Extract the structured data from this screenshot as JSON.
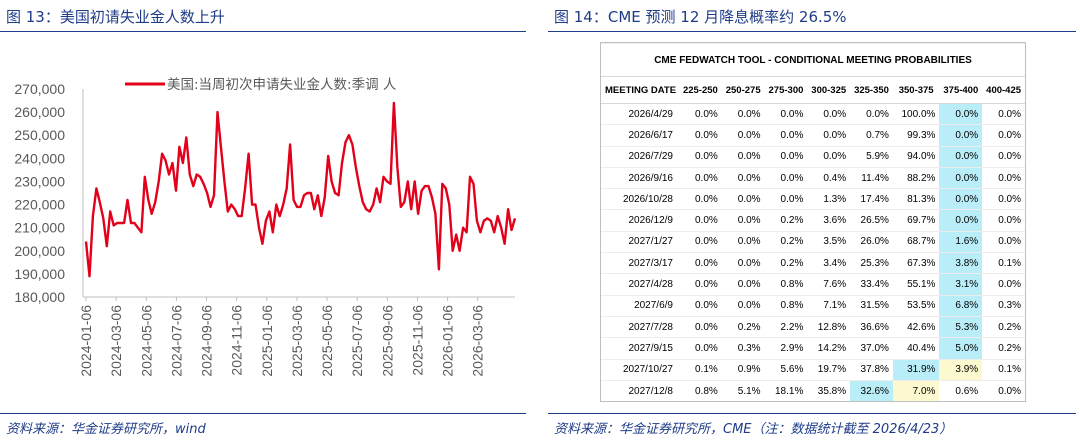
{
  "left": {
    "figure_title": "图 13：美国初请失业金人数上升",
    "source": "资料来源：华金证券研究所，wind"
  },
  "right": {
    "figure_title": "图 14：CME 预测 12 月降息概率约 26.5%",
    "source": "资料来源：华金证券研究所，CME（注：数据统计截至 2026/4/23）"
  },
  "colors": {
    "accent": "#1f3c88",
    "line": "#e2001a",
    "highlight_blue": "#b9eef8",
    "highlight_yellow": "#fcf8cf"
  },
  "chart_data": {
    "type": "line",
    "title": "",
    "legend_label": "美国:当周初次申请失业金人数:季调 人",
    "legend_position": "top",
    "ylim": [
      180000,
      270000
    ],
    "yticks": [
      "270,000",
      "260,000",
      "250,000",
      "240,000",
      "230,000",
      "220,000",
      "210,000",
      "200,000",
      "190,000",
      "180,000"
    ],
    "ytick_values": [
      270000,
      260000,
      250000,
      240000,
      230000,
      220000,
      210000,
      200000,
      190000,
      180000
    ],
    "xticks": [
      "2024-01-06",
      "2024-03-06",
      "2024-05-06",
      "2024-07-06",
      "2024-09-06",
      "2024-11-06",
      "2025-01-06",
      "2025-03-06",
      "2025-05-06",
      "2025-07-06",
      "2025-09-06",
      "2025-11-06",
      "2026-01-06",
      "2026-03-06"
    ],
    "series": [
      {
        "name": "美国:当周初次申请失业金人数:季调 人",
        "x_start": "2024-01-06",
        "interval": "weekly",
        "values": [
          204000,
          189000,
          215000,
          227000,
          221000,
          214000,
          202000,
          217000,
          211000,
          212000,
          212000,
          212000,
          222000,
          212000,
          212000,
          210000,
          208000,
          232000,
          222000,
          216000,
          221000,
          230000,
          242000,
          239000,
          233000,
          238000,
          226000,
          245000,
          238000,
          249000,
          233000,
          228000,
          233000,
          232000,
          229000,
          225000,
          219000,
          224000,
          260000,
          245000,
          230000,
          217000,
          220000,
          218000,
          215000,
          215000,
          227000,
          242000,
          220000,
          220000,
          210000,
          203000,
          213000,
          217000,
          208000,
          220000,
          215000,
          220000,
          227000,
          246000,
          222000,
          219000,
          219000,
          224000,
          225000,
          225000,
          218000,
          224000,
          215000,
          223000,
          241000,
          230000,
          225000,
          224000,
          238000,
          247000,
          250000,
          246000,
          236000,
          228000,
          221000,
          218000,
          217000,
          220000,
          227000,
          221000,
          232000,
          230000,
          229000,
          264000,
          236000,
          219000,
          221000,
          230000,
          218000,
          230000,
          216000,
          226000,
          228000,
          228000,
          223000,
          216000,
          192000,
          229000,
          227000,
          220000,
          200000,
          207000,
          200000,
          210000,
          208000,
          232000,
          229000,
          213000,
          208000,
          213000,
          214000,
          213000,
          208000,
          215000,
          210000,
          203000,
          218000,
          209000,
          214000
        ]
      }
    ]
  },
  "table": {
    "tool_title": "CME FEDWATCH TOOL - CONDITIONAL MEETING PROBABILITIES",
    "headers": [
      "MEETING DATE",
      "225-250",
      "250-275",
      "275-300",
      "300-325",
      "325-350",
      "350-375",
      "375-400",
      "400-425"
    ],
    "rows": [
      [
        "2026/4/29",
        "0.0%",
        "0.0%",
        "0.0%",
        "0.0%",
        "0.0%",
        "100.0%",
        "0.0%",
        "0.0%"
      ],
      [
        "2026/6/17",
        "0.0%",
        "0.0%",
        "0.0%",
        "0.0%",
        "0.7%",
        "99.3%",
        "0.0%",
        "0.0%"
      ],
      [
        "2026/7/29",
        "0.0%",
        "0.0%",
        "0.0%",
        "0.0%",
        "5.9%",
        "94.0%",
        "0.0%",
        "0.0%"
      ],
      [
        "2026/9/16",
        "0.0%",
        "0.0%",
        "0.0%",
        "0.4%",
        "11.4%",
        "88.2%",
        "0.0%",
        "0.0%"
      ],
      [
        "2026/10/28",
        "0.0%",
        "0.0%",
        "0.0%",
        "1.3%",
        "17.4%",
        "81.3%",
        "0.0%",
        "0.0%"
      ],
      [
        "2026/12/9",
        "0.0%",
        "0.0%",
        "0.2%",
        "3.6%",
        "26.5%",
        "69.7%",
        "0.0%",
        "0.0%"
      ],
      [
        "2027/1/27",
        "0.0%",
        "0.0%",
        "0.2%",
        "3.5%",
        "26.0%",
        "68.7%",
        "1.6%",
        "0.0%"
      ],
      [
        "2027/3/17",
        "0.0%",
        "0.0%",
        "0.2%",
        "3.4%",
        "25.3%",
        "67.3%",
        "3.8%",
        "0.1%"
      ],
      [
        "2027/4/28",
        "0.0%",
        "0.0%",
        "0.8%",
        "7.6%",
        "33.4%",
        "55.1%",
        "3.1%",
        "0.0%"
      ],
      [
        "2027/6/9",
        "0.0%",
        "0.0%",
        "0.8%",
        "7.1%",
        "31.5%",
        "53.5%",
        "6.8%",
        "0.3%"
      ],
      [
        "2027/7/28",
        "0.0%",
        "0.2%",
        "2.2%",
        "12.8%",
        "36.6%",
        "42.6%",
        "5.3%",
        "0.2%"
      ],
      [
        "2027/9/15",
        "0.0%",
        "0.3%",
        "2.9%",
        "14.2%",
        "37.0%",
        "40.4%",
        "5.0%",
        "0.2%"
      ],
      [
        "2027/10/27",
        "0.1%",
        "0.9%",
        "5.6%",
        "19.7%",
        "37.8%",
        "31.9%",
        "3.9%",
        "0.1%"
      ],
      [
        "2027/12/8",
        "0.8%",
        "5.1%",
        "18.1%",
        "35.8%",
        "32.6%",
        "7.0%",
        "0.6%",
        "0.0%"
      ]
    ],
    "highlights": [
      {
        "row": 0,
        "col": 6,
        "color": "blue"
      },
      {
        "row": 1,
        "col": 6,
        "color": "blue"
      },
      {
        "row": 2,
        "col": 6,
        "color": "blue"
      },
      {
        "row": 3,
        "col": 6,
        "color": "blue"
      },
      {
        "row": 4,
        "col": 6,
        "color": "blue"
      },
      {
        "row": 5,
        "col": 6,
        "color": "blue"
      },
      {
        "row": 6,
        "col": 6,
        "color": "blue"
      },
      {
        "row": 7,
        "col": 6,
        "color": "blue"
      },
      {
        "row": 8,
        "col": 6,
        "color": "blue"
      },
      {
        "row": 9,
        "col": 6,
        "color": "blue"
      },
      {
        "row": 10,
        "col": 6,
        "color": "blue"
      },
      {
        "row": 11,
        "col": 6,
        "color": "blue"
      },
      {
        "row": 12,
        "col": 5,
        "color": "blue"
      },
      {
        "row": 12,
        "col": 6,
        "color": "yellow"
      },
      {
        "row": 13,
        "col": 4,
        "color": "blue"
      },
      {
        "row": 13,
        "col": 5,
        "color": "yellow"
      }
    ]
  }
}
